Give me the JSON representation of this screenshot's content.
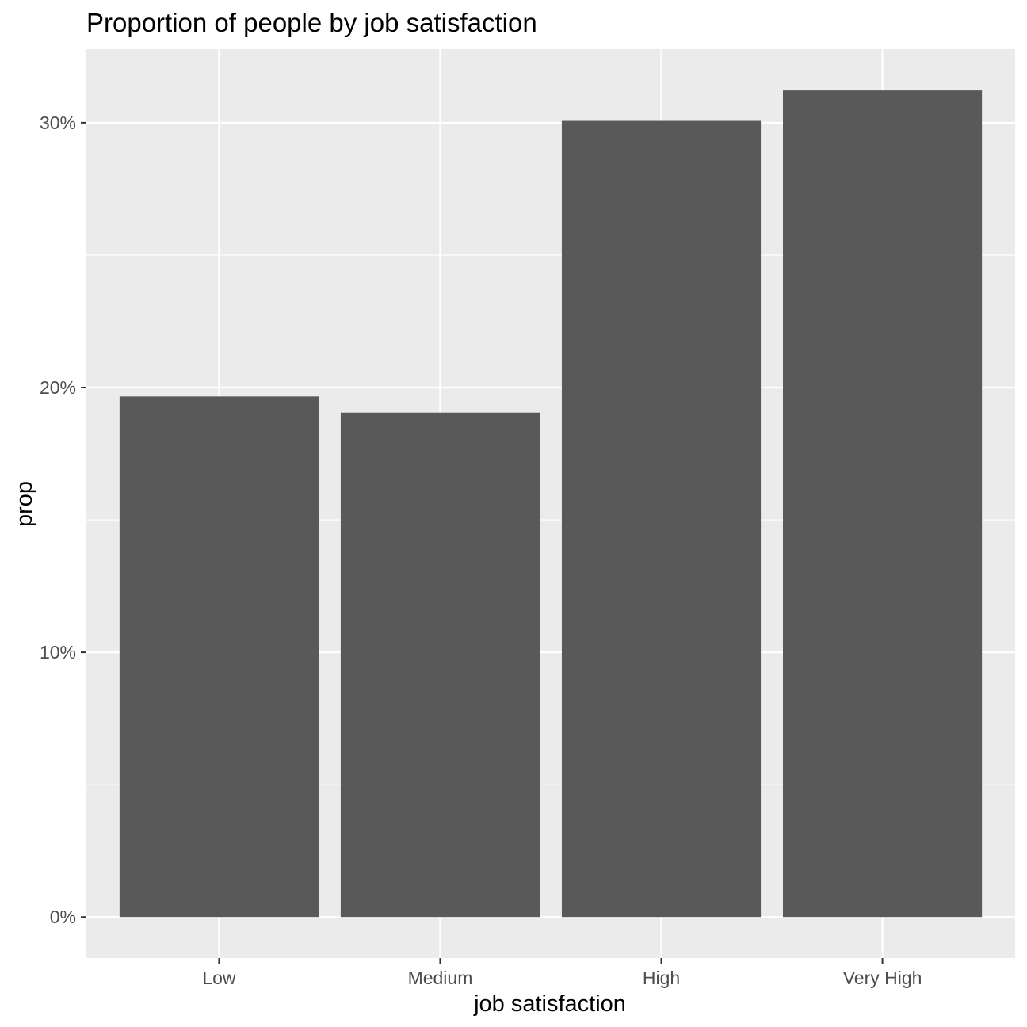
{
  "chart_data": {
    "type": "bar",
    "title": "Proportion of people by job satisfaction",
    "xlabel": "job satisfaction",
    "ylabel": "prop",
    "categories": [
      "Low",
      "Medium",
      "High",
      "Very High"
    ],
    "values": [
      0.1966,
      0.1905,
      0.3007,
      0.3122
    ],
    "ylim": [
      -0.0155,
      0.3278
    ],
    "y_ticks": [
      0,
      0.1,
      0.2,
      0.3
    ],
    "y_tick_labels": [
      "0%",
      "10%",
      "20%",
      "30%"
    ],
    "y_minor_ticks": [
      0.05,
      0.15,
      0.25
    ],
    "grid": true,
    "legend": "none",
    "colors": {
      "bar": "#595959",
      "panel_background": "#ebebeb",
      "grid": "#ffffff",
      "tick_label": "#4d4d4d",
      "axis_tick": "#333333"
    }
  }
}
